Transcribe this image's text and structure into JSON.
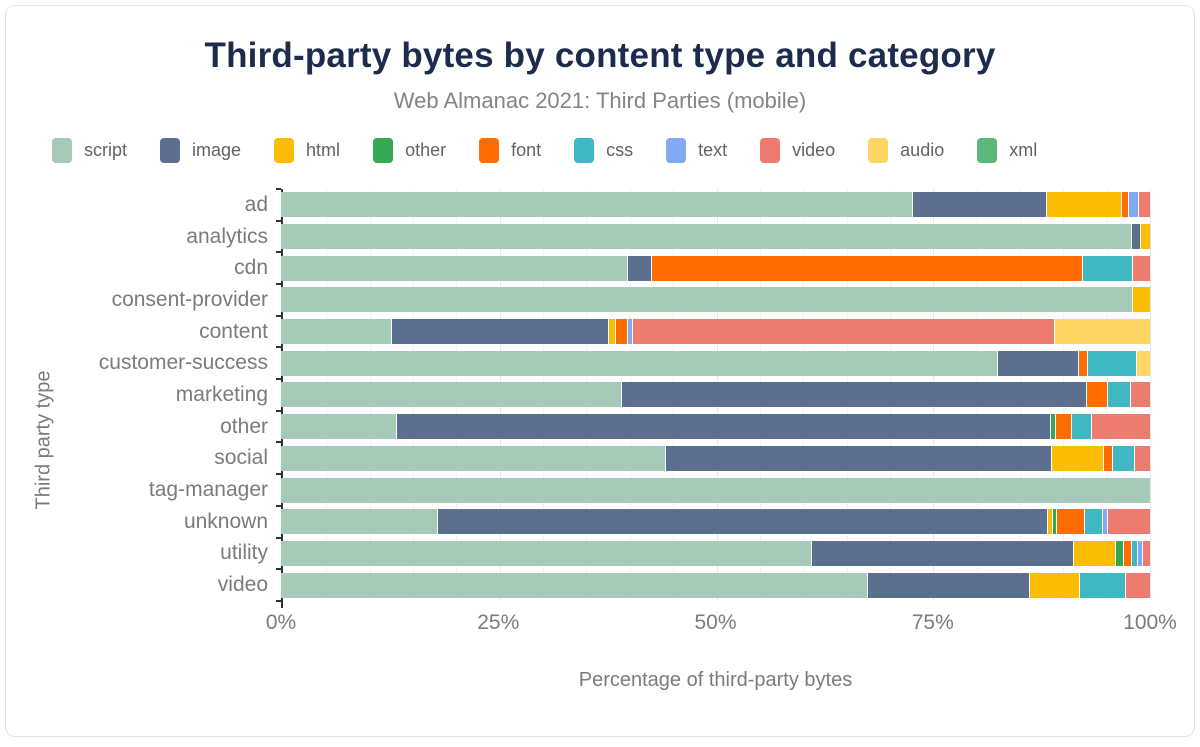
{
  "chart_data": {
    "type": "bar",
    "orientation": "horizontal",
    "stacked": true,
    "title": "Third-party bytes by content type and category",
    "subtitle": "Web Almanac 2021: Third Parties (mobile)",
    "xlabel": "Percentage of third-party bytes",
    "ylabel": "Third party type",
    "units": "percent",
    "xlim": [
      0,
      100
    ],
    "x_ticks": [
      {
        "label": "0%",
        "value": 0
      },
      {
        "label": "25%",
        "value": 25
      },
      {
        "label": "50%",
        "value": 50
      },
      {
        "label": "75%",
        "value": 75
      },
      {
        "label": "100%",
        "value": 100
      }
    ],
    "legend_position": "top",
    "grid": "vertical, minor every 5%, major every 25%",
    "categories": [
      "ad",
      "analytics",
      "cdn",
      "consent-provider",
      "content",
      "customer-success",
      "marketing",
      "other",
      "social",
      "tag-manager",
      "unknown",
      "utility",
      "video"
    ],
    "series": [
      {
        "name": "script",
        "color": "#a6cab8",
        "values": [
          73.0,
          98.0,
          40.0,
          98.0,
          12.7,
          82.8,
          39.3,
          13.3,
          44.4,
          100.0,
          18.1,
          61.5,
          67.7
        ]
      },
      {
        "name": "image",
        "color": "#5d6f8e",
        "values": [
          15.4,
          1.0,
          2.7,
          0,
          25.1,
          9.2,
          53.6,
          75.6,
          44.6,
          0,
          70.7,
          30.3,
          18.7
        ]
      },
      {
        "name": "html",
        "color": "#fbbc04",
        "values": [
          8.6,
          1.0,
          0,
          2.0,
          0.7,
          0,
          0,
          0,
          5.9,
          0,
          0.4,
          4.7,
          5.6
        ]
      },
      {
        "name": "other",
        "color": "#34a853",
        "values": [
          0,
          0,
          0,
          0,
          0,
          0,
          0,
          0.5,
          0,
          0,
          0.4,
          0.8,
          0
        ]
      },
      {
        "name": "font",
        "color": "#ff6d00",
        "values": [
          0.7,
          0,
          49.7,
          0,
          1.3,
          1.0,
          2.4,
          1.7,
          0.9,
          0,
          3.1,
          0.8,
          0
        ]
      },
      {
        "name": "css",
        "color": "#40b8c4",
        "values": [
          0,
          0,
          5.6,
          0,
          0,
          5.5,
          2.5,
          2.2,
          2.5,
          0,
          2.0,
          0.6,
          5.2
        ]
      },
      {
        "name": "text",
        "color": "#83a9f3",
        "values": [
          1.0,
          0,
          0,
          0,
          0.4,
          0,
          0,
          0,
          0,
          0,
          0.4,
          0.5,
          0
        ]
      },
      {
        "name": "video",
        "color": "#ee7b70",
        "values": [
          1.3,
          0,
          2.0,
          0,
          48.8,
          0,
          2.2,
          6.7,
          1.7,
          0,
          4.9,
          0.8,
          2.8
        ]
      },
      {
        "name": "audio",
        "color": "#fdd663",
        "values": [
          0,
          0,
          0,
          0,
          11.0,
          1.5,
          0,
          0,
          0,
          0,
          0,
          0,
          0
        ]
      },
      {
        "name": "xml",
        "color": "#5cb87a",
        "values": [
          0,
          0,
          0,
          0,
          0,
          0,
          0,
          0,
          0,
          0,
          0,
          0,
          0
        ]
      }
    ]
  }
}
